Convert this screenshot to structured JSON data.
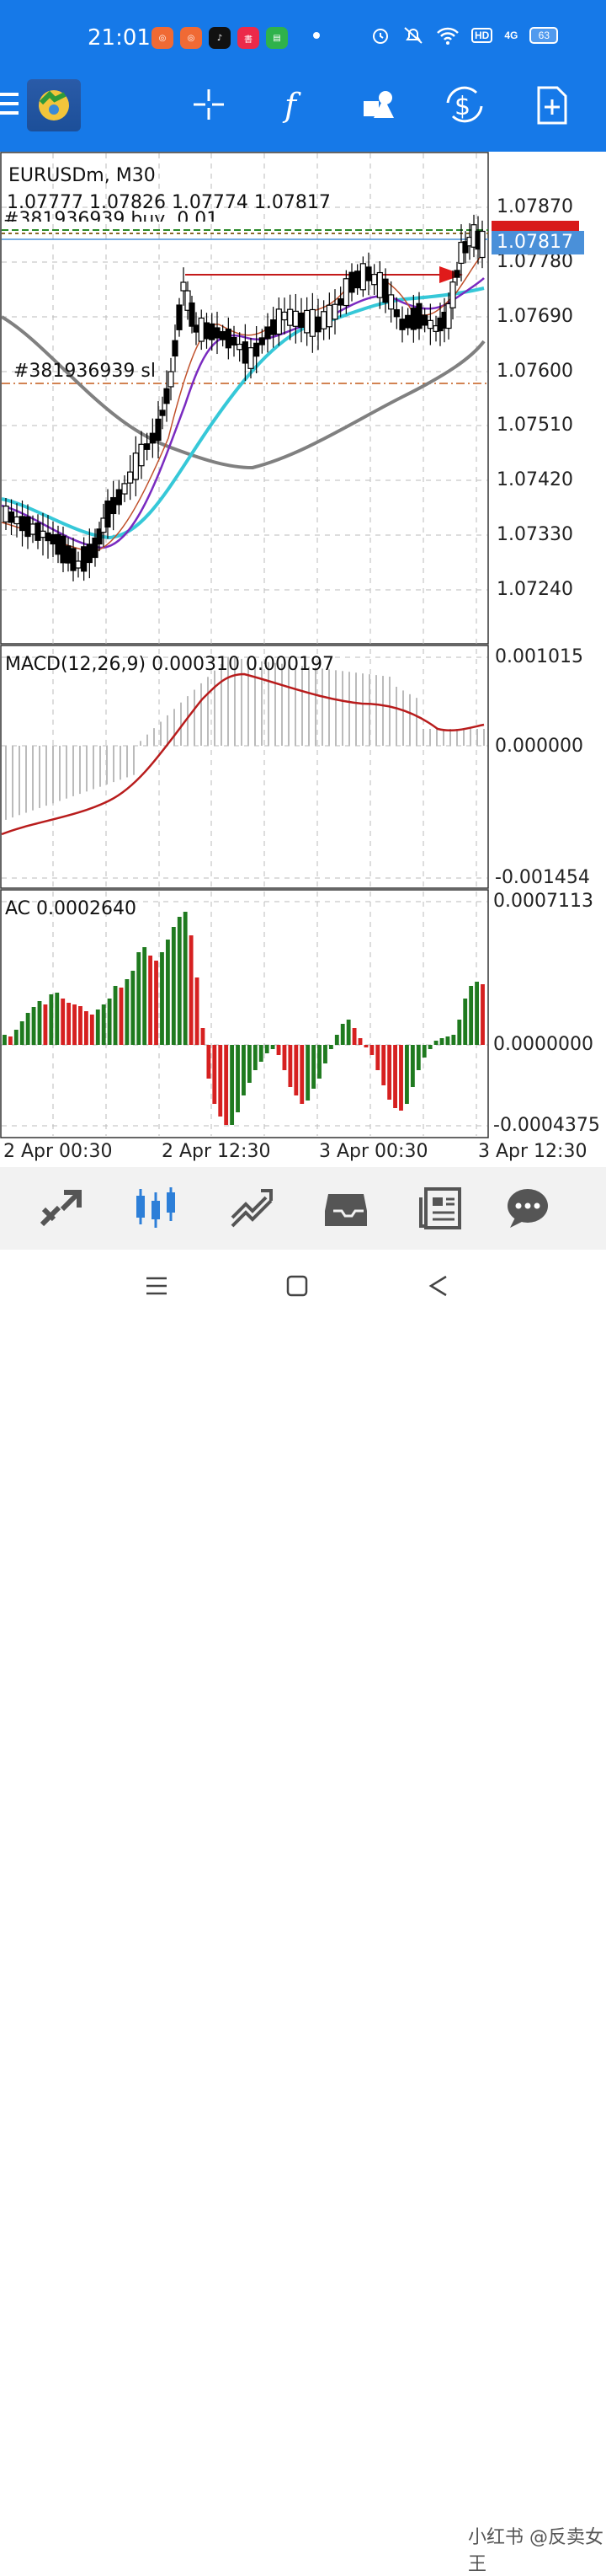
{
  "status_bar": {
    "time": "21:01",
    "battery": "63",
    "network": "4G",
    "hd": "HD"
  },
  "toolbar": {
    "icons": [
      "menu-icon",
      "app-logo",
      "crosshair-icon",
      "indicators-icon",
      "objects-icon",
      "trade-icon",
      "new-order-icon"
    ]
  },
  "chart": {
    "symbol": "EURUSDm, M30",
    "ohlc": "1.07777 1.07826 1.07774 1.07817",
    "order_label": "#381936939 buy, 0.01",
    "sl_label": "#381936939 sl",
    "current_price": "1.07817",
    "price_ticks": [
      "1.07870",
      "1.07780",
      "1.07690",
      "1.07600",
      "1.07510",
      "1.07420",
      "1.07330",
      "1.07240"
    ],
    "macd_label": "MACD(12,26,9) 0.000310 0.000197",
    "macd_ticks": [
      "0.001015",
      "0.000000",
      "-0.001454"
    ],
    "ac_label": "AC 0.0002640",
    "ac_ticks": [
      "0.0007113",
      "0.0000000",
      "-0.0004375"
    ],
    "time_ticks": [
      "2 Apr 00:30",
      "2 Apr 12:30",
      "3 Apr 00:30",
      "3 Apr 12:30"
    ],
    "colors": {
      "bull_ac": "#1f7a1f",
      "bear_ac": "#d62020",
      "ma_fast": "#c0502a",
      "ma_mid": "#7a2bc0",
      "ma_slow": "#36c8d8",
      "ma_long": "#808080",
      "macd_signal": "#b81c1c",
      "price_tag": "#4a90d9"
    }
  },
  "bottom_nav": [
    "quotes-icon",
    "chart-icon",
    "trade-icon",
    "history-icon",
    "news-icon",
    "messages-icon"
  ],
  "watermark": "小红书 @反卖女王"
}
